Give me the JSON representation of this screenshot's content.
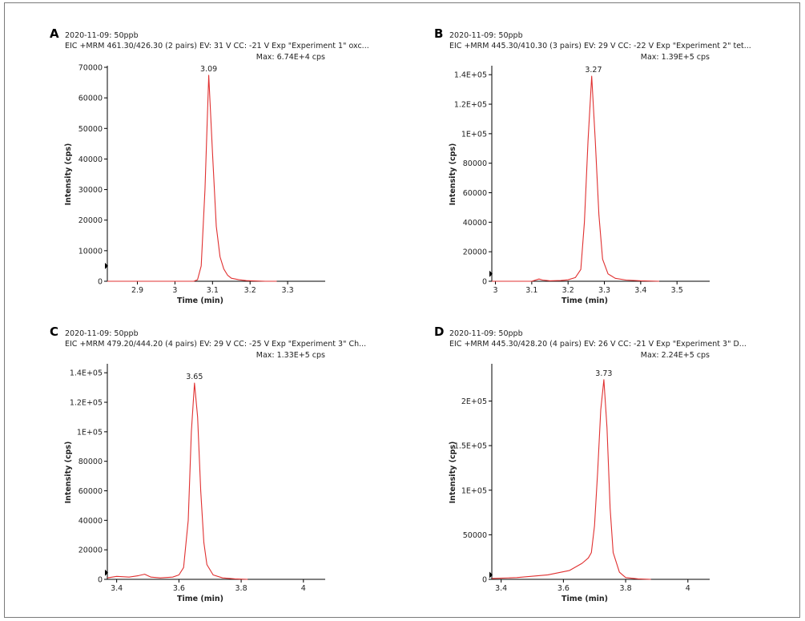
{
  "colors": {
    "trace": "#e03030",
    "axis": "#000000",
    "text": "#222222",
    "border": "#7a7a7a"
  },
  "chart_data": [
    {
      "type": "line",
      "panel_label": "A",
      "date_line": "2020-11-09: 50ppb",
      "info_line": "EIC +MRM 461.30/426.30 (2 pairs) EV: 31 V CC: -21 V Exp \"Experiment 1\" oxc...",
      "max_text": "Max: 6.74E+4 cps",
      "xlabel": "Time (min)",
      "ylabel": "Intensity (cps)",
      "xlim": [
        2.82,
        3.4
      ],
      "ylim": [
        0,
        70000
      ],
      "xticks": [
        {
          "v": 2.9,
          "t": "2.9"
        },
        {
          "v": 3.0,
          "t": "3"
        },
        {
          "v": 3.1,
          "t": "3.1"
        },
        {
          "v": 3.2,
          "t": "3.2"
        },
        {
          "v": 3.3,
          "t": "3.3"
        }
      ],
      "yticks": [
        {
          "v": 0,
          "t": "0"
        },
        {
          "v": 10000,
          "t": "10000"
        },
        {
          "v": 20000,
          "t": "20000"
        },
        {
          "v": 30000,
          "t": "30000"
        },
        {
          "v": 40000,
          "t": "40000"
        },
        {
          "v": 50000,
          "t": "50000"
        },
        {
          "v": 60000,
          "t": "60000"
        },
        {
          "v": 70000,
          "t": "70000"
        }
      ],
      "peak": {
        "x": 3.09,
        "y": 67400,
        "label": "3.09"
      },
      "marker_y": 5000,
      "series": [
        {
          "x": [
            3.05,
            3.06,
            3.07,
            3.08,
            3.09,
            3.1,
            3.11,
            3.12,
            3.13,
            3.14,
            3.15,
            3.17,
            3.19,
            3.21,
            3.24,
            3.27
          ],
          "y": [
            0,
            500,
            5000,
            30000,
            67400,
            42000,
            18000,
            8000,
            4000,
            2000,
            1000,
            500,
            200,
            100,
            0,
            0
          ]
        }
      ]
    },
    {
      "type": "line",
      "panel_label": "B",
      "date_line": "2020-11-09: 50ppb",
      "info_line": "EIC +MRM 445.30/410.30 (3 pairs) EV: 29 V CC: -22 V Exp \"Experiment 2\" tet...",
      "max_text": "Max: 1.39E+5 cps",
      "xlabel": "Time (min)",
      "ylabel": "Intensity (cps)",
      "xlim": [
        2.99,
        3.59
      ],
      "ylim": [
        0,
        145000
      ],
      "xticks": [
        {
          "v": 3.0,
          "t": "3"
        },
        {
          "v": 3.1,
          "t": "3.1"
        },
        {
          "v": 3.2,
          "t": "3.2"
        },
        {
          "v": 3.3,
          "t": "3.3"
        },
        {
          "v": 3.4,
          "t": "3.4"
        },
        {
          "v": 3.5,
          "t": "3.5"
        }
      ],
      "yticks": [
        {
          "v": 0,
          "t": "0"
        },
        {
          "v": 20000,
          "t": "20000"
        },
        {
          "v": 40000,
          "t": "40000"
        },
        {
          "v": 60000,
          "t": "60000"
        },
        {
          "v": 80000,
          "t": "80000"
        },
        {
          "v": 100000,
          "t": "1E+05"
        },
        {
          "v": 120000,
          "t": "1.2E+05"
        },
        {
          "v": 140000,
          "t": "1.4E+05"
        }
      ],
      "peak": {
        "x": 3.27,
        "y": 139000,
        "label": "3.27"
      },
      "marker_y": 5000,
      "series": [
        {
          "x": [
            3.1,
            3.12,
            3.13,
            3.15,
            3.18,
            3.2,
            3.22,
            3.235,
            3.245,
            3.255,
            3.265,
            3.275,
            3.285,
            3.295,
            3.31,
            3.33,
            3.36,
            3.4,
            3.45
          ],
          "y": [
            0,
            1500,
            800,
            300,
            500,
            1000,
            2500,
            8000,
            40000,
            95000,
            139000,
            95000,
            45000,
            15000,
            5000,
            2000,
            800,
            300,
            0
          ]
        }
      ]
    },
    {
      "type": "line",
      "panel_label": "C",
      "date_line": "2020-11-09: 50ppb",
      "info_line": "EIC +MRM 479.20/444.20 (4 pairs) EV: 29 V CC: -25 V Exp \"Experiment 3\" Ch...",
      "max_text": "Max: 1.33E+5 cps",
      "xlabel": "Time (min)",
      "ylabel": "Intensity (cps)",
      "xlim": [
        3.37,
        4.07
      ],
      "ylim": [
        0,
        145000
      ],
      "xticks": [
        {
          "v": 3.4,
          "t": "3.4"
        },
        {
          "v": 3.6,
          "t": "3.6"
        },
        {
          "v": 3.8,
          "t": "3.8"
        },
        {
          "v": 4.0,
          "t": "4"
        }
      ],
      "yticks": [
        {
          "v": 0,
          "t": "0"
        },
        {
          "v": 20000,
          "t": "20000"
        },
        {
          "v": 40000,
          "t": "40000"
        },
        {
          "v": 60000,
          "t": "60000"
        },
        {
          "v": 80000,
          "t": "80000"
        },
        {
          "v": 100000,
          "t": "1E+05"
        },
        {
          "v": 120000,
          "t": "1.2E+05"
        },
        {
          "v": 140000,
          "t": "1.4E+05"
        }
      ],
      "peak": {
        "x": 3.65,
        "y": 133000,
        "label": "3.65"
      },
      "marker_y": 4500,
      "series": [
        {
          "x": [
            3.37,
            3.4,
            3.44,
            3.47,
            3.49,
            3.51,
            3.54,
            3.58,
            3.6,
            3.615,
            3.63,
            3.64,
            3.65,
            3.66,
            3.67,
            3.68,
            3.69,
            3.71,
            3.74,
            3.78,
            3.82
          ],
          "y": [
            1000,
            2000,
            1500,
            2500,
            3500,
            1500,
            1000,
            1500,
            3000,
            8000,
            40000,
            100000,
            133000,
            110000,
            60000,
            25000,
            10000,
            3000,
            1000,
            300,
            0
          ]
        }
      ]
    },
    {
      "type": "line",
      "panel_label": "D",
      "date_line": "2020-11-09: 50ppb",
      "info_line": "EIC +MRM 445.30/428.20 (4 pairs) EV: 26 V CC: -21 V Exp \"Experiment 3\" D...",
      "max_text": "Max: 2.24E+5 cps",
      "xlabel": "Time (min)",
      "ylabel": "Intensity (cps)",
      "xlim": [
        3.37,
        4.07
      ],
      "ylim": [
        0,
        240000
      ],
      "xticks": [
        {
          "v": 3.4,
          "t": "3.4"
        },
        {
          "v": 3.6,
          "t": "3.6"
        },
        {
          "v": 3.8,
          "t": "3.8"
        },
        {
          "v": 4.0,
          "t": "4"
        }
      ],
      "yticks": [
        {
          "v": 0,
          "t": "0"
        },
        {
          "v": 50000,
          "t": "50000"
        },
        {
          "v": 100000,
          "t": "1E+05"
        },
        {
          "v": 150000,
          "t": "1.5E+05"
        },
        {
          "v": 200000,
          "t": "2E+05"
        }
      ],
      "peak": {
        "x": 3.73,
        "y": 224000,
        "label": "3.73"
      },
      "marker_y": 5000,
      "series": [
        {
          "x": [
            3.37,
            3.45,
            3.55,
            3.62,
            3.66,
            3.68,
            3.69,
            3.7,
            3.71,
            3.72,
            3.73,
            3.74,
            3.75,
            3.76,
            3.78,
            3.8,
            3.84,
            3.88
          ],
          "y": [
            1000,
            2000,
            5000,
            10000,
            18000,
            24000,
            30000,
            60000,
            120000,
            190000,
            224000,
            170000,
            80000,
            30000,
            8000,
            2000,
            500,
            0
          ]
        }
      ]
    }
  ]
}
